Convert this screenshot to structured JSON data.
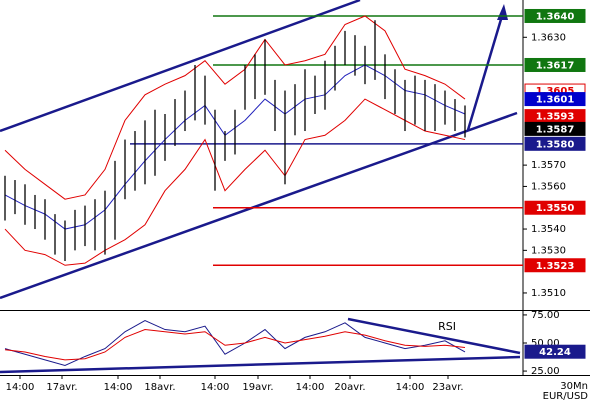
{
  "chart_data": [
    {
      "type": "hilo",
      "x": [
        0,
        1,
        2,
        3,
        4,
        5,
        6,
        7,
        8,
        9,
        10,
        11,
        12,
        13,
        14,
        15,
        16,
        17,
        18,
        19,
        20,
        21,
        22,
        23,
        24,
        25,
        26,
        27,
        28,
        29,
        30,
        31,
        32,
        33,
        34,
        35,
        36,
        37,
        38,
        39,
        40,
        41,
        42,
        43,
        44,
        45,
        46
      ],
      "high": [
        1.3565,
        1.3563,
        1.3561,
        1.3556,
        1.3554,
        1.3547,
        1.3544,
        1.3549,
        1.3551,
        1.3554,
        1.3558,
        1.3572,
        1.3582,
        1.3586,
        1.3591,
        1.3596,
        1.3594,
        1.3601,
        1.3605,
        1.3617,
        1.3612,
        1.3596,
        1.3586,
        1.3596,
        1.3617,
        1.3622,
        1.3629,
        1.361,
        1.3605,
        1.3608,
        1.3615,
        1.3612,
        1.3619,
        1.3626,
        1.3633,
        1.3631,
        1.3626,
        1.3638,
        1.3622,
        1.3615,
        1.361,
        1.3612,
        1.361,
        1.3608,
        1.3605,
        1.3601,
        1.3598
      ],
      "low": [
        1.3544,
        1.3547,
        1.3542,
        1.354,
        1.3535,
        1.3528,
        1.3525,
        1.353,
        1.3532,
        1.353,
        1.3528,
        1.3535,
        1.3554,
        1.3558,
        1.3561,
        1.3565,
        1.3572,
        1.3579,
        1.3586,
        1.3591,
        1.3589,
        1.3558,
        1.3572,
        1.3575,
        1.3596,
        1.3601,
        1.3603,
        1.3586,
        1.3561,
        1.3584,
        1.3586,
        1.3594,
        1.3596,
        1.3605,
        1.3617,
        1.3612,
        1.3608,
        1.361,
        1.3601,
        1.3594,
        1.3586,
        1.3589,
        1.3586,
        1.3586,
        1.3589,
        1.3586,
        1.3583
      ],
      "bar_color": "#000000",
      "overlays": {
        "x": [
          0,
          2,
          4,
          6,
          8,
          10,
          12,
          14,
          16,
          18,
          20,
          22,
          24,
          26,
          28,
          30,
          32,
          34,
          36,
          38,
          40,
          42,
          44,
          46
        ],
        "series": [
          {
            "color": "#e00000",
            "values": [
              1.3577,
              1.3568,
              1.3561,
              1.3554,
              1.3556,
              1.3568,
              1.3591,
              1.3603,
              1.3608,
              1.3612,
              1.3619,
              1.3608,
              1.3615,
              1.3629,
              1.3617,
              1.3619,
              1.3622,
              1.3636,
              1.364,
              1.3633,
              1.3615,
              1.3612,
              1.3608,
              1.3601
            ]
          },
          {
            "color": "#e00000",
            "values": [
              1.354,
              1.353,
              1.3528,
              1.3523,
              1.3524,
              1.353,
              1.3535,
              1.3542,
              1.3558,
              1.3568,
              1.3582,
              1.3558,
              1.3568,
              1.3577,
              1.3565,
              1.3582,
              1.3584,
              1.3591,
              1.3601,
              1.3596,
              1.3591,
              1.3586,
              1.3584,
              1.3582
            ]
          },
          {
            "color": "#2222bb",
            "values": [
              1.3556,
              1.3551,
              1.3547,
              1.354,
              1.3542,
              1.3549,
              1.3561,
              1.3572,
              1.3582,
              1.3591,
              1.3598,
              1.3584,
              1.3591,
              1.3601,
              1.3594,
              1.3601,
              1.3603,
              1.3612,
              1.3617,
              1.3612,
              1.3605,
              1.3603,
              1.3598,
              1.3594
            ]
          }
        ]
      },
      "xlim": [
        -0.5,
        51.8
      ],
      "ylim": [
        1.3502,
        1.36475
      ],
      "yticks": [
        {
          "value": 1.363,
          "label": "1.3630"
        },
        {
          "value": 1.357,
          "label": "1.3570"
        },
        {
          "value": 1.356,
          "label": "1.3560"
        },
        {
          "value": 1.354,
          "label": "1.3540"
        },
        {
          "value": 1.353,
          "label": "1.3530"
        },
        {
          "value": 1.351,
          "label": "1.3510"
        }
      ],
      "levels": [
        {
          "value": 1.364,
          "label": "1.3640",
          "color": "#117711",
          "text_color": "#ffffff",
          "x0": 20.8
        },
        {
          "value": 1.3617,
          "label": "1.3617",
          "color": "#117711",
          "text_color": "#ffffff",
          "x0": 20.8
        },
        {
          "value": 1.3605,
          "label": "1.3605",
          "color": "#ffffff",
          "border": "#e00000",
          "text_color": "#e00000"
        },
        {
          "value": 1.3601,
          "label": "1.3601",
          "color": "#0000cc",
          "text_color": "#ffffff"
        },
        {
          "value": 1.3593,
          "label": "1.3593",
          "color": "#e00000",
          "text_color": "#ffffff"
        },
        {
          "value": 1.3587,
          "label": "1.3587",
          "color": "#000000",
          "text_color": "#ffffff"
        },
        {
          "value": 1.358,
          "label": "1.3580",
          "color": "#1a1a8c",
          "text_color": "#ffffff",
          "x0": 12.5
        },
        {
          "value": 1.355,
          "label": "1.3550",
          "color": "#e00000",
          "text_color": "#ffffff",
          "x0": 20.8
        },
        {
          "value": 1.3523,
          "label": "1.3523",
          "color": "#e00000",
          "text_color": "#ffffff",
          "x0": 20.8
        }
      ]
    },
    {
      "type": "line",
      "annotation": "RSI",
      "x": [
        0,
        2,
        4,
        6,
        8,
        10,
        12,
        14,
        16,
        18,
        20,
        22,
        24,
        26,
        28,
        30,
        32,
        34,
        36,
        38,
        40,
        42,
        44,
        46
      ],
      "series": [
        {
          "color": "#1a1a8c",
          "values": [
            45,
            40,
            35,
            30,
            38,
            45,
            60,
            70,
            62,
            60,
            65,
            40,
            50,
            62,
            45,
            55,
            60,
            68,
            55,
            50,
            45,
            48,
            52,
            42
          ]
        },
        {
          "color": "#e00000",
          "values": [
            44,
            42,
            38,
            35,
            36,
            42,
            55,
            62,
            60,
            58,
            60,
            48,
            50,
            55,
            50,
            53,
            56,
            60,
            57,
            52,
            48,
            47,
            48,
            46
          ]
        }
      ],
      "current": {
        "value": 42.24,
        "color": "#1a1a8c",
        "text_color": "#ffffff"
      },
      "xlim": [
        -0.5,
        51.8
      ],
      "ylim": [
        21.5,
        78.5
      ],
      "yticks": [
        {
          "value": 75,
          "label": "75.00"
        },
        {
          "value": 50,
          "label": "50.00"
        },
        {
          "value": 25,
          "label": "25.00"
        }
      ],
      "xticks": [
        {
          "value": 1.5,
          "label": "14:00"
        },
        {
          "value": 5.7,
          "label": "17avr."
        },
        {
          "value": 11.3,
          "label": "14:00"
        },
        {
          "value": 15.5,
          "label": "18avr."
        },
        {
          "value": 21,
          "label": "14:00"
        },
        {
          "value": 25.3,
          "label": "19avr."
        },
        {
          "value": 30.5,
          "label": "14:00"
        },
        {
          "value": 34.5,
          "label": "20avr."
        },
        {
          "value": 40.5,
          "label": "14:00"
        },
        {
          "value": 44.3,
          "label": "23avr."
        }
      ],
      "period": "30Mn",
      "symbol": "EUR/USD"
    }
  ]
}
